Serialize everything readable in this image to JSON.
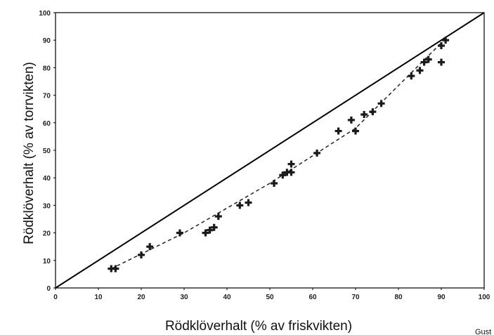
{
  "chart_data": {
    "type": "scatter",
    "title": "",
    "xlabel": "Rödklöverhalt (% av friskvikten)",
    "ylabel": "Rödklöverhalt (% av torrvikten)",
    "xlim": [
      0,
      100
    ],
    "ylim": [
      0,
      100
    ],
    "xticks": [
      "0",
      "10",
      "20",
      "30",
      "40",
      "50",
      "60",
      "70",
      "80",
      "90",
      "100"
    ],
    "yticks": [
      "0",
      "10",
      "20",
      "30",
      "40",
      "50",
      "60",
      "70",
      "80",
      "90",
      "100"
    ],
    "grid": false,
    "legend": "none",
    "reference_line": {
      "x": [
        0,
        100
      ],
      "y": [
        0,
        100
      ]
    },
    "series": [
      {
        "marker": "cross",
        "color": "#1a1a1a",
        "x": [
          13,
          14,
          20,
          22,
          29,
          35,
          36,
          37,
          38,
          43,
          45,
          51,
          53,
          54,
          55,
          55,
          61,
          66,
          69,
          70,
          72,
          74,
          76,
          83,
          85,
          86,
          87,
          90,
          90,
          91
        ],
        "y": [
          7,
          7,
          12,
          15,
          20,
          20,
          21,
          22,
          26,
          30,
          31,
          38,
          41,
          42,
          42,
          45,
          49,
          57,
          61,
          57,
          63,
          64,
          67,
          77,
          79,
          82,
          83,
          82,
          88,
          90
        ]
      }
    ],
    "fit_line": {
      "style": "dashed",
      "x": [
        13,
        30,
        50,
        70,
        90
      ],
      "y": [
        7,
        20,
        38,
        58,
        89
      ]
    }
  },
  "credit": "Gust"
}
